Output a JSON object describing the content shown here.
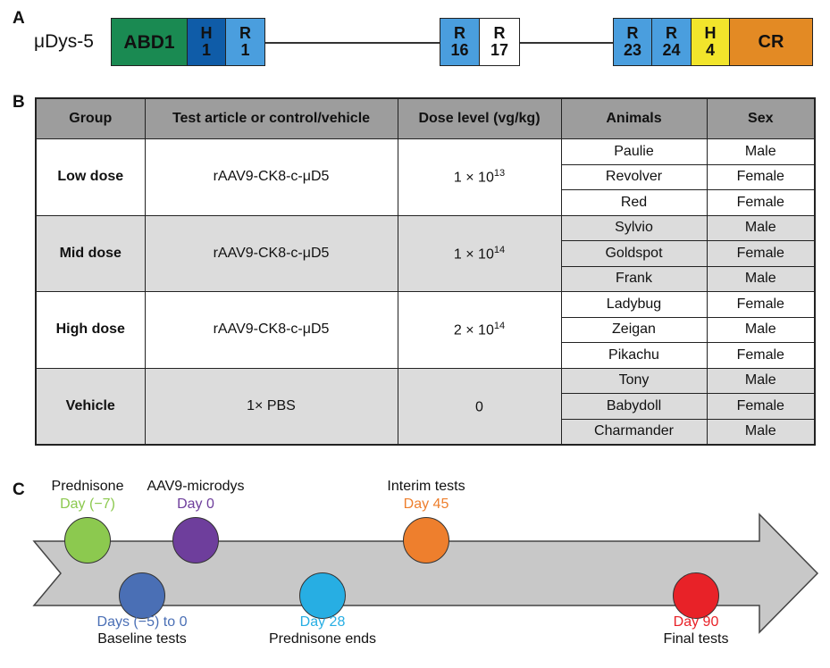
{
  "panels": {
    "a": "A",
    "b": "B",
    "c": "C"
  },
  "construct": {
    "name": "μDys-5",
    "domains": [
      {
        "id": "abd1",
        "line1": "ABD1",
        "line2": "",
        "color": "#1a8a52",
        "text_color": "#111111"
      },
      {
        "id": "h1",
        "line1": "H",
        "line2": "1",
        "color": "#0f5ca8",
        "text_color": "#111111"
      },
      {
        "id": "r1",
        "line1": "R",
        "line2": "1",
        "color": "#4a9ede",
        "text_color": "#111111"
      },
      {
        "id": "r16",
        "line1": "R",
        "line2": "16",
        "color": "#4a9ede",
        "text_color": "#111111"
      },
      {
        "id": "r17",
        "line1": "R",
        "line2": "17",
        "color": "#ffffff",
        "text_color": "#111111"
      },
      {
        "id": "r23",
        "line1": "R",
        "line2": "23",
        "color": "#4a9ede",
        "text_color": "#111111"
      },
      {
        "id": "r24",
        "line1": "R",
        "line2": "24",
        "color": "#4a9ede",
        "text_color": "#111111"
      },
      {
        "id": "h4",
        "line1": "H",
        "line2": "4",
        "color": "#f2e52b",
        "text_color": "#111111"
      },
      {
        "id": "cr",
        "line1": "CR",
        "line2": "",
        "color": "#e38a24",
        "text_color": "#111111"
      }
    ]
  },
  "table": {
    "headers": [
      "Group",
      "Test article or control/vehicle",
      "Dose level (vg/kg)",
      "Animals",
      "Sex"
    ],
    "groups": [
      {
        "group": "Low dose",
        "article": "rAAV9-CK8-c-μD5",
        "dose_base": "1 × 10",
        "dose_exp": "13",
        "shade": "white",
        "animals": [
          {
            "name": "Paulie",
            "sex": "Male"
          },
          {
            "name": "Revolver",
            "sex": "Female"
          },
          {
            "name": "Red",
            "sex": "Female"
          }
        ]
      },
      {
        "group": "Mid dose",
        "article": "rAAV9-CK8-c-μD5",
        "dose_base": "1 × 10",
        "dose_exp": "14",
        "shade": "grey",
        "animals": [
          {
            "name": "Sylvio",
            "sex": "Male"
          },
          {
            "name": "Goldspot",
            "sex": "Female"
          },
          {
            "name": "Frank",
            "sex": "Male"
          }
        ]
      },
      {
        "group": "High dose",
        "article": "rAAV9-CK8-c-μD5",
        "dose_base": "2 × 10",
        "dose_exp": "14",
        "shade": "white",
        "animals": [
          {
            "name": "Ladybug",
            "sex": "Female"
          },
          {
            "name": "Zeigan",
            "sex": "Male"
          },
          {
            "name": "Pikachu",
            "sex": "Female"
          }
        ]
      },
      {
        "group": "Vehicle",
        "article": "1× PBS",
        "dose_base": "0",
        "dose_exp": "",
        "shade": "grey",
        "animals": [
          {
            "name": "Tony",
            "sex": "Male"
          },
          {
            "name": "Babydoll",
            "sex": "Female"
          },
          {
            "name": "Charmander",
            "sex": "Male"
          }
        ]
      }
    ]
  },
  "timeline": {
    "arrow_color": "#c8c8c8",
    "events": [
      {
        "id": "prednisone-start",
        "title": "Prednisone",
        "day": "Day (−7)",
        "color": "#8cc94f",
        "position": "above"
      },
      {
        "id": "aav-dose",
        "title": "AAV9-microdys",
        "day": "Day 0",
        "color": "#6e3e9c",
        "position": "above"
      },
      {
        "id": "interim",
        "title": "Interim tests",
        "day": "Day 45",
        "color": "#ee7f2d",
        "position": "above"
      },
      {
        "id": "baseline",
        "title": "Baseline tests",
        "day": "Days (−5) to 0",
        "color": "#4a6fb5",
        "position": "below"
      },
      {
        "id": "prednisone-end",
        "title": "Prednisone ends",
        "day": "Day 28",
        "color": "#27aee3",
        "position": "below"
      },
      {
        "id": "final",
        "title": "Final tests",
        "day": "Day 90",
        "color": "#e82228",
        "position": "below"
      }
    ]
  }
}
